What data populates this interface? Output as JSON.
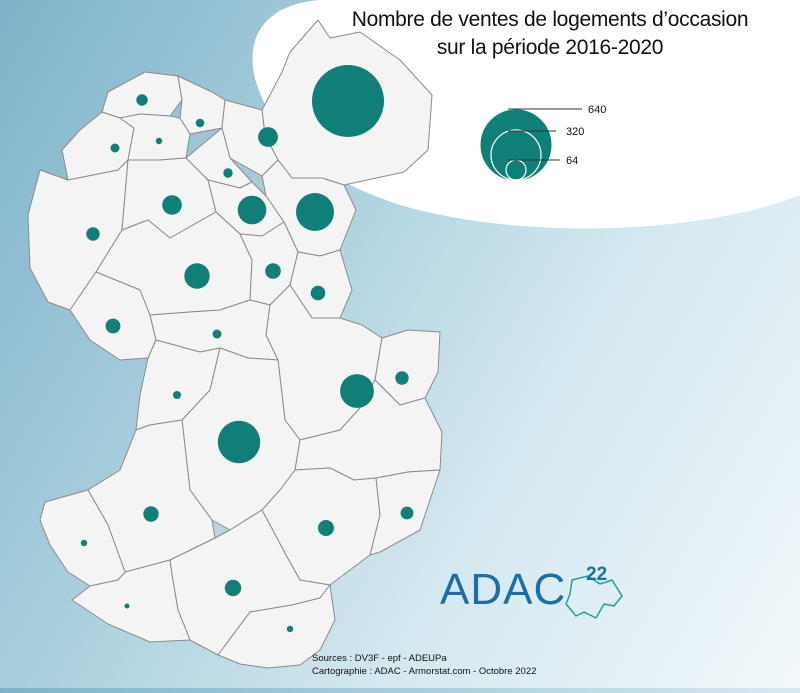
{
  "title_line1": "Nombre de ventes de logements d’occasion",
  "title_line2": "sur la période 2016-2020",
  "legend": {
    "values": [
      "640",
      "320",
      "64"
    ],
    "color": "#0f7f78"
  },
  "communes": [
    {
      "id": "c01",
      "sales": 640
    },
    {
      "id": "c02",
      "sales": 16
    },
    {
      "id": "c03",
      "sales": 9
    },
    {
      "id": "c04",
      "sales": 10
    },
    {
      "id": "c05",
      "sales": 5
    },
    {
      "id": "c06",
      "sales": 48
    },
    {
      "id": "c07",
      "sales": 22
    },
    {
      "id": "c08",
      "sales": 11
    },
    {
      "id": "c09",
      "sales": 178
    },
    {
      "id": "c10",
      "sales": 47
    },
    {
      "id": "c11",
      "sales": 101
    },
    {
      "id": "c12",
      "sales": 80
    },
    {
      "id": "c13",
      "sales": 30
    },
    {
      "id": "c14",
      "sales": 26
    },
    {
      "id": "c15",
      "sales": 27
    },
    {
      "id": "c16",
      "sales": 10
    },
    {
      "id": "c17",
      "sales": 8
    },
    {
      "id": "c18",
      "sales": 141
    },
    {
      "id": "c19",
      "sales": 22
    },
    {
      "id": "c20",
      "sales": 222
    },
    {
      "id": "c21",
      "sales": 29
    },
    {
      "id": "c22",
      "sales": 20
    },
    {
      "id": "c23",
      "sales": 32
    },
    {
      "id": "c24",
      "sales": 5
    },
    {
      "id": "c25",
      "sales": 33
    },
    {
      "id": "c26",
      "sales": 2
    },
    {
      "id": "c27",
      "sales": 5
    }
  ],
  "logo": {
    "text": "ADAC",
    "superscript": "22",
    "color": "#1b6fa8"
  },
  "sources_line1": "Sources : DV3F - epf - ADEUPa",
  "sources_line2": "Cartographie : ADAC - Armorstat.com - Octobre 2022"
}
